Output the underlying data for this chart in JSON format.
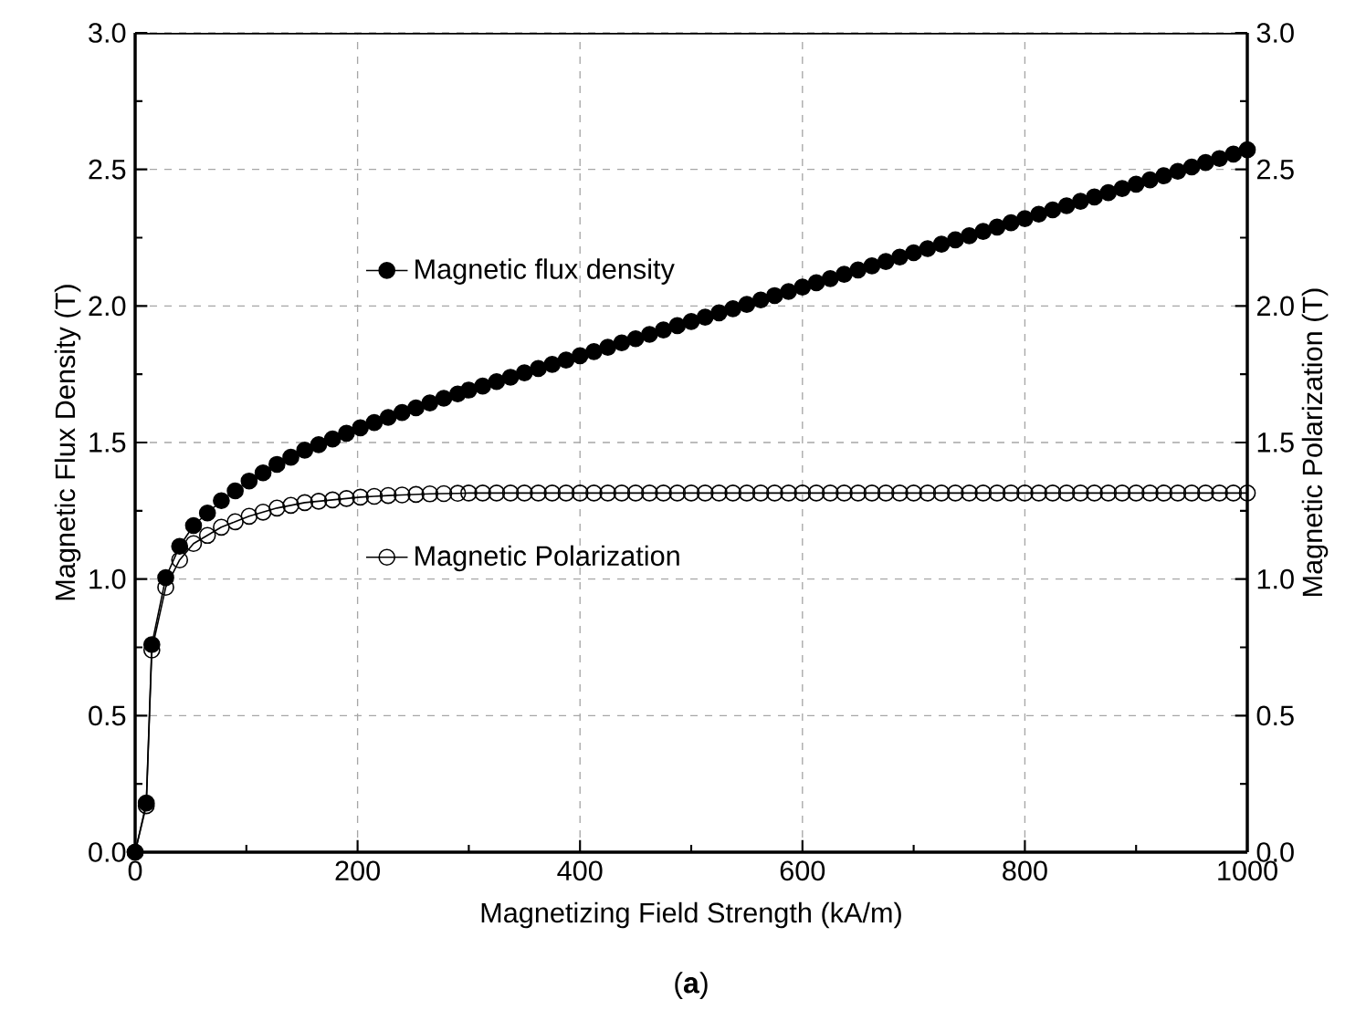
{
  "chart_data": {
    "type": "line",
    "xlabel": "Magnetizing Field Strength (kA/m)",
    "ylabel": "Magnetic Flux Density (T)",
    "y2label": "Magnetic Polarization (T)",
    "annotations": [
      "(**a**)"
    ],
    "xlim": [
      0,
      1000
    ],
    "xticks": [
      0,
      200,
      400,
      600,
      800,
      1000
    ],
    "ylim": [
      0,
      3.0
    ],
    "yticks": [
      {
        "value": 0,
        "label": "0.0"
      },
      0.5,
      {
        "value": 1,
        "label": "1.0"
      },
      1.5,
      {
        "value": 2,
        "label": "2.0"
      },
      2.5,
      {
        "value": 3,
        "label": "3.0"
      }
    ],
    "y2lim": [
      0,
      3.0
    ],
    "y2ticks": [
      {
        "value": 0,
        "label": "0.0"
      },
      0.5,
      {
        "value": 1,
        "label": "1.0"
      },
      1.5,
      {
        "value": 2,
        "label": "2.0"
      },
      2.5,
      {
        "value": 3,
        "label": "3.0"
      }
    ],
    "grid": true,
    "legend": "left",
    "line_style": "solid",
    "x": [
      0,
      10,
      15,
      27.5,
      40,
      52.5,
      65,
      77.5,
      90,
      102.5,
      115,
      127.5,
      140,
      152.5,
      165,
      177.5,
      190,
      202.5,
      215,
      227.5,
      240,
      252.5,
      265,
      277.5,
      290,
      300,
      312.5,
      325,
      337.5,
      350,
      362.5,
      375,
      387.5,
      400,
      412.5,
      425,
      437.5,
      450,
      462.5,
      475,
      487.5,
      500,
      512.5,
      525,
      537.5,
      550,
      562.5,
      575,
      587.5,
      600,
      612.5,
      625,
      637.5,
      650,
      662.5,
      675,
      687.5,
      700,
      712.5,
      725,
      737.5,
      750,
      762.5,
      775,
      787.5,
      800,
      812.5,
      825,
      837.5,
      850,
      862.5,
      875,
      887.5,
      900,
      912.5,
      925,
      937.5,
      950,
      962.5,
      975,
      987.5,
      1000
    ],
    "series": [
      {
        "name": "Magnetic flux density",
        "color": "#000000",
        "marker": "circle",
        "values": [
          0,
          0.18,
          0.76,
          1.005,
          1.12,
          1.196,
          1.242,
          1.287,
          1.323,
          1.359,
          1.389,
          1.42,
          1.446,
          1.472,
          1.492,
          1.513,
          1.534,
          1.554,
          1.573,
          1.592,
          1.61,
          1.627,
          1.645,
          1.662,
          1.678,
          1.692,
          1.707,
          1.723,
          1.739,
          1.755,
          1.771,
          1.786,
          1.802,
          1.818,
          1.833,
          1.849,
          1.865,
          1.88,
          1.896,
          1.912,
          1.928,
          1.943,
          1.959,
          1.975,
          1.99,
          2.006,
          2.022,
          2.038,
          2.053,
          2.069,
          2.085,
          2.1,
          2.116,
          2.132,
          2.147,
          2.163,
          2.179,
          2.195,
          2.21,
          2.226,
          2.242,
          2.257,
          2.273,
          2.289,
          2.305,
          2.32,
          2.336,
          2.352,
          2.367,
          2.383,
          2.399,
          2.415,
          2.43,
          2.446,
          2.462,
          2.477,
          2.493,
          2.509,
          2.525,
          2.54,
          2.556,
          2.572
        ]
      },
      {
        "name": "Magnetic Polarization",
        "color": "#000000",
        "marker": "circle_open",
        "axis": "y2",
        "values": [
          0,
          0.17,
          0.74,
          0.97,
          1.07,
          1.13,
          1.16,
          1.19,
          1.21,
          1.23,
          1.245,
          1.26,
          1.27,
          1.28,
          1.285,
          1.29,
          1.295,
          1.3,
          1.303,
          1.306,
          1.308,
          1.31,
          1.312,
          1.313,
          1.314,
          1.315,
          1.315,
          1.315,
          1.315,
          1.315,
          1.315,
          1.315,
          1.315,
          1.315,
          1.315,
          1.315,
          1.315,
          1.315,
          1.315,
          1.315,
          1.315,
          1.315,
          1.315,
          1.315,
          1.315,
          1.315,
          1.315,
          1.315,
          1.315,
          1.315,
          1.315,
          1.315,
          1.315,
          1.315,
          1.315,
          1.315,
          1.315,
          1.315,
          1.315,
          1.315,
          1.315,
          1.315,
          1.315,
          1.315,
          1.315,
          1.315,
          1.315,
          1.315,
          1.315,
          1.315,
          1.315,
          1.315,
          1.315,
          1.315,
          1.315,
          1.315,
          1.315,
          1.315,
          1.315,
          1.315,
          1.315,
          1.315
        ]
      }
    ]
  }
}
